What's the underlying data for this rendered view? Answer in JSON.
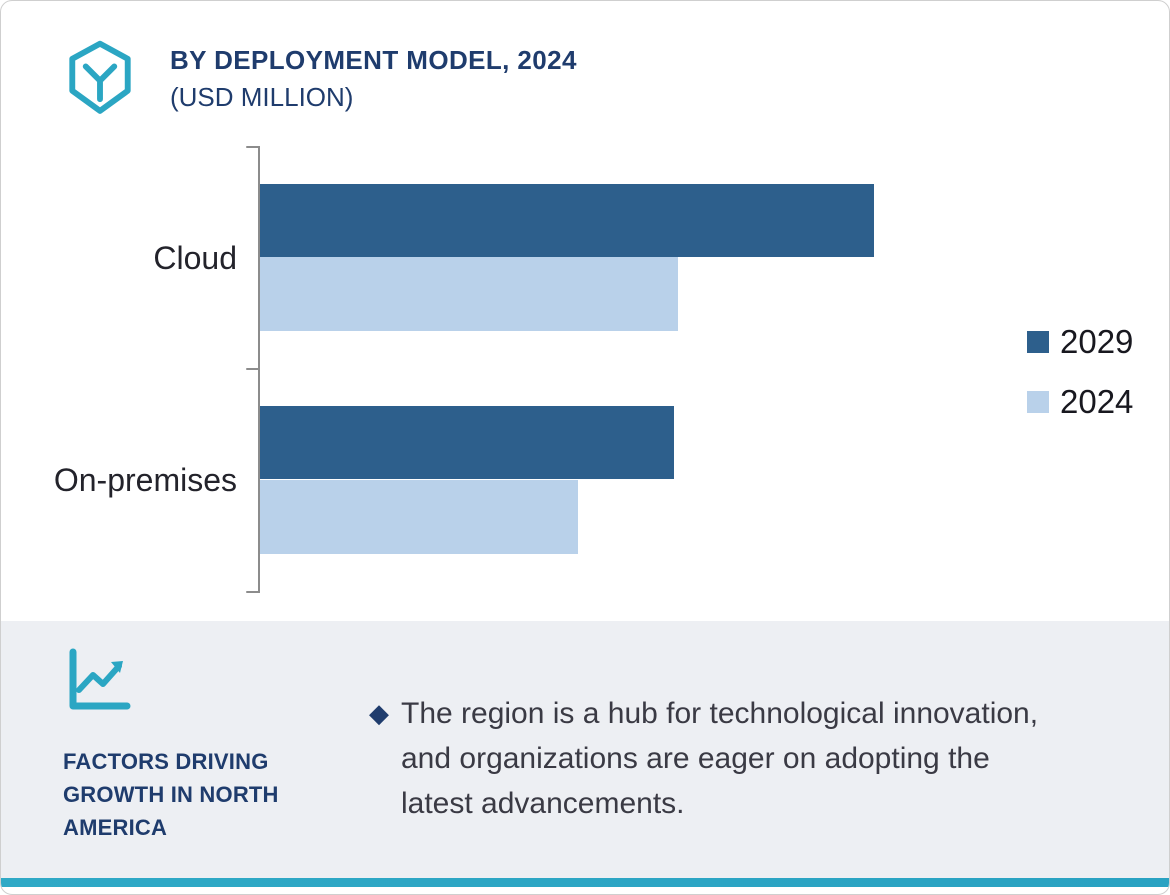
{
  "header": {
    "title_line1": "BY DEPLOYMENT MODEL, 2024",
    "title_line2": "(USD MILLION)"
  },
  "colors": {
    "accent_teal": "#2ba6c3",
    "heading_navy": "#1f3c6d",
    "panel_background": "#edeff3",
    "series_2029": "#2d5f8c",
    "series_2024": "#b9d1ea"
  },
  "chart_data": {
    "type": "bar",
    "orientation": "horizontal",
    "title": "BY DEPLOYMENT MODEL, 2024 (USD MILLION)",
    "categories": [
      "Cloud",
      "On-premises"
    ],
    "series": [
      {
        "name": "2029",
        "color": "#2d5f8c",
        "values": [
          83,
          56
        ]
      },
      {
        "name": "2024",
        "color": "#b9d1ea",
        "values": [
          56.5,
          43
        ]
      }
    ],
    "xlim": [
      0,
      100
    ],
    "value_note": "no numeric axis shown; values estimated as percent of plot width",
    "grid": false,
    "legend_position": "right"
  },
  "legend": {
    "items": [
      {
        "label": "2029",
        "color": "#2d5f8c"
      },
      {
        "label": "2024",
        "color": "#b9d1ea"
      }
    ]
  },
  "insights": {
    "heading": "FACTORS DRIVING GROWTH IN NORTH AMERICA",
    "bullet_glyph": "◆",
    "bullet_text": "The region is a hub for technological innovation, and organizations are eager on adopting the latest advancements."
  }
}
